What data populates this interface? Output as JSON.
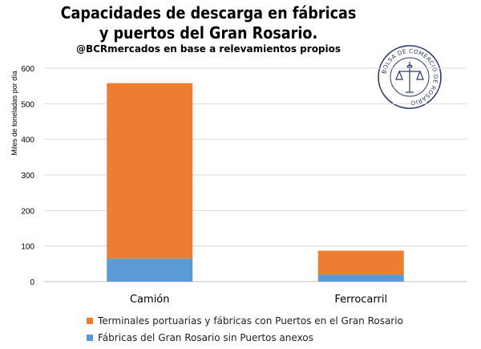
{
  "chart_data": {
    "type": "bar",
    "stacked": true,
    "title": "Capacidades de descarga en fábricas y puertos del Gran Rosario.",
    "subtitle": "@BCRmercados en base a relevamientos propios",
    "ylabel": "Miles de toneladas por día",
    "xlabel": "",
    "ylim": [
      0,
      600
    ],
    "yticks": [
      0,
      100,
      200,
      300,
      400,
      500,
      600
    ],
    "categories": [
      "Camión",
      "Ferrocarril"
    ],
    "series": [
      {
        "name": "Fábricas del Gran Rosario sin Puertos anexos",
        "values": [
          65,
          20
        ],
        "color": "#5b9bd5"
      },
      {
        "name": "Terminales portuarias y fábricas con Puertos en el Gran Rosario",
        "values": [
          493,
          67
        ],
        "color": "#ed7d31"
      }
    ],
    "legend_position": "bottom",
    "grid": true
  },
  "seal": {
    "text": "BOLSA DE COMERCIO DE ROSARIO"
  }
}
